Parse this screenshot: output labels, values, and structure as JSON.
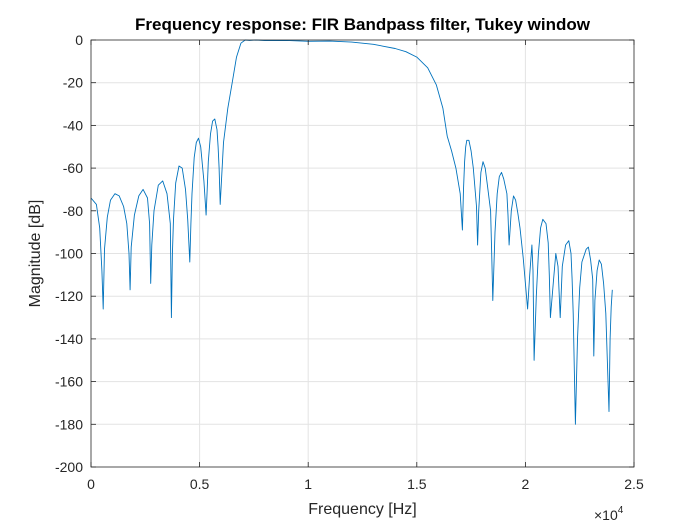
{
  "chart_data": {
    "type": "line",
    "title": "Frequency response: FIR Bandpass filter, Tukey window",
    "xlabel": "Frequency [Hz]",
    "ylabel": "Magnitude [dB]",
    "xlim": [
      0,
      25000
    ],
    "ylim": [
      -200,
      0
    ],
    "x_tick_labels": [
      "0",
      "0.5",
      "1",
      "1.5",
      "2",
      "2.5"
    ],
    "x_tick_values": [
      0,
      5000,
      10000,
      15000,
      20000,
      25000
    ],
    "x_exponent_base": "×10",
    "x_exponent_power": "4",
    "y_tick_labels": [
      "0",
      "-20",
      "-40",
      "-60",
      "-80",
      "-100",
      "-120",
      "-140",
      "-160",
      "-180",
      "-200"
    ],
    "y_tick_values": [
      0,
      -20,
      -40,
      -60,
      -80,
      -100,
      -120,
      -140,
      -160,
      -180,
      -200
    ],
    "grid": true,
    "line_color": "#0072BD",
    "series": [
      {
        "x": [
          0,
          250,
          400,
          500,
          560,
          620,
          750,
          900,
          1100,
          1300,
          1500,
          1650,
          1750,
          1800,
          1850,
          2000,
          2200,
          2400,
          2600,
          2700,
          2750,
          2800,
          2900,
          3100,
          3300,
          3500,
          3650,
          3700,
          3750,
          3800,
          3900,
          4050,
          4200,
          4350,
          4450,
          4550,
          4600,
          4650,
          4750,
          4850,
          4950,
          5050,
          5200,
          5300,
          5350,
          5400,
          5500,
          5600,
          5700,
          5800,
          5850,
          5900,
          5950,
          6100,
          6300,
          6500,
          6700,
          6900,
          7100,
          7300,
          7600,
          8000,
          9000,
          10000,
          11000,
          12000,
          13000,
          14000,
          14500,
          15000,
          15500,
          15900,
          16200,
          16400,
          16600,
          16800,
          17000,
          17100,
          17150,
          17200,
          17250,
          17300,
          17400,
          17500,
          17600,
          17750,
          17800,
          17850,
          17950,
          18050,
          18150,
          18250,
          18400,
          18450,
          18500,
          18600,
          18700,
          18800,
          18900,
          19000,
          19150,
          19200,
          19250,
          19350,
          19450,
          19550,
          19650,
          19750,
          19900,
          20100,
          20200,
          20300,
          20350,
          20400,
          20500,
          20600,
          20700,
          20800,
          20950,
          21050,
          21100,
          21150,
          21300,
          21400,
          21500,
          21600,
          21700,
          21850,
          22000,
          22100,
          22150,
          22200,
          22300,
          22400,
          22500,
          22600,
          22800,
          22900,
          23000,
          23100,
          23150,
          23200,
          23300,
          23400,
          23500,
          23600,
          23700,
          23850,
          23900,
          23950,
          24000
        ],
        "y": [
          -74,
          -77,
          -88,
          -108,
          -126,
          -98,
          -83,
          -75,
          -72,
          -73,
          -78,
          -86,
          -100,
          -117,
          -97,
          -82,
          -73,
          -70,
          -74,
          -86,
          -114,
          -96,
          -80,
          -68,
          -66,
          -72,
          -86,
          -130,
          -100,
          -84,
          -67,
          -59,
          -60,
          -70,
          -84,
          -104,
          -86,
          -72,
          -55,
          -48,
          -46,
          -50,
          -66,
          -82,
          -70,
          -57,
          -44,
          -38,
          -37,
          -42,
          -50,
          -60,
          -77,
          -48,
          -32,
          -20,
          -8,
          -1.5,
          0,
          -0.2,
          0,
          -0.3,
          -0.2,
          -0.6,
          -0.5,
          -1,
          -2,
          -4,
          -5.5,
          -8,
          -13,
          -21,
          -32,
          -45,
          -52,
          -60,
          -72,
          -89,
          -70,
          -57,
          -50,
          -47,
          -47,
          -52,
          -60,
          -78,
          -96,
          -80,
          -62,
          -57,
          -60,
          -68,
          -80,
          -100,
          -122,
          -90,
          -72,
          -64,
          -62,
          -65,
          -72,
          -82,
          -96,
          -80,
          -73,
          -75,
          -81,
          -88,
          -102,
          -126,
          -110,
          -96,
          -108,
          -150,
          -120,
          -100,
          -88,
          -84,
          -86,
          -95,
          -110,
          -130,
          -112,
          -100,
          -106,
          -130,
          -106,
          -96,
          -94,
          -100,
          -112,
          -128,
          -180,
          -140,
          -116,
          -104,
          -98,
          -97,
          -103,
          -112,
          -148,
          -122,
          -108,
          -103,
          -105,
          -114,
          -128,
          -174,
          -140,
          -125,
          -117
        ]
      }
    ]
  }
}
